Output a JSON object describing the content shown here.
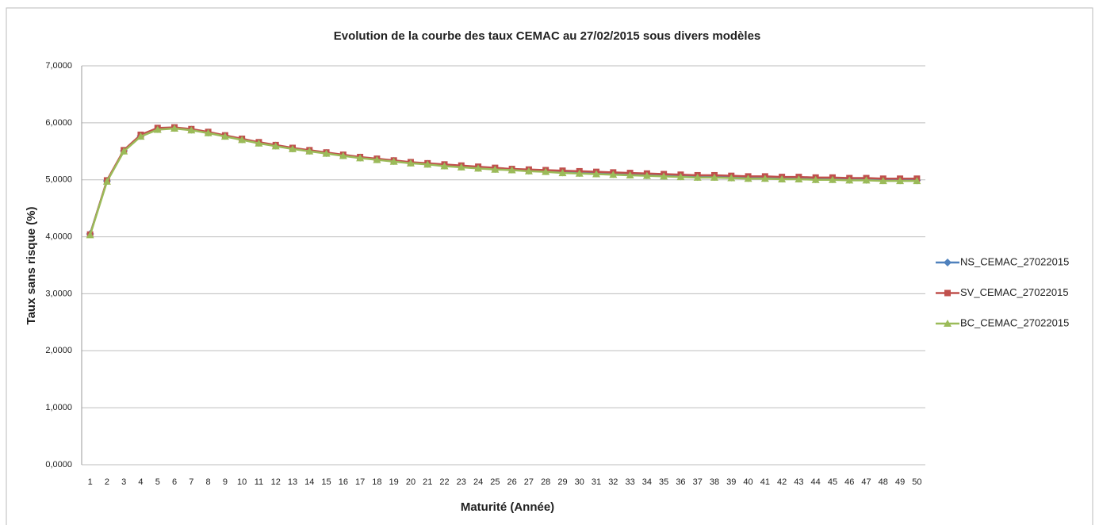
{
  "chart_data": {
    "type": "line",
    "title": "Evolution de la courbe des taux CEMAC au 27/02/2015 sous divers modèles",
    "x_label": "Maturité (Année)",
    "y_label": "Taux sans risque (%)",
    "categories": [
      "1",
      "2",
      "3",
      "4",
      "5",
      "6",
      "7",
      "8",
      "9",
      "10",
      "11",
      "12",
      "13",
      "14",
      "15",
      "16",
      "17",
      "18",
      "19",
      "20",
      "21",
      "22",
      "23",
      "24",
      "25",
      "26",
      "27",
      "28",
      "29",
      "30",
      "31",
      "32",
      "33",
      "34",
      "35",
      "36",
      "37",
      "38",
      "39",
      "40",
      "41",
      "42",
      "43",
      "44",
      "45",
      "46",
      "47",
      "48",
      "49",
      "50"
    ],
    "ylim": [
      0,
      7
    ],
    "yticks": [
      {
        "value": 0,
        "label": "0,0000"
      },
      {
        "value": 1,
        "label": "1,0000"
      },
      {
        "value": 2,
        "label": "2,0000"
      },
      {
        "value": 3,
        "label": "3,0000"
      },
      {
        "value": 4,
        "label": "4,0000"
      },
      {
        "value": 5,
        "label": "5,0000"
      },
      {
        "value": 6,
        "label": "6,0000"
      },
      {
        "value": 7,
        "label": "7,0000"
      }
    ],
    "grid": true,
    "legend": "right",
    "series": [
      {
        "name": "NS_CEMAC_27022015",
        "color": "#4f81bd",
        "marker": "diamond",
        "values": [
          4.05,
          4.98,
          5.51,
          5.77,
          5.89,
          5.91,
          5.88,
          5.83,
          5.77,
          5.71,
          5.65,
          5.6,
          5.55,
          5.51,
          5.47,
          5.43,
          5.39,
          5.36,
          5.33,
          5.3,
          5.28,
          5.25,
          5.23,
          5.21,
          5.19,
          5.18,
          5.16,
          5.15,
          5.13,
          5.12,
          5.11,
          5.1,
          5.09,
          5.08,
          5.07,
          5.06,
          5.05,
          5.05,
          5.04,
          5.03,
          5.03,
          5.02,
          5.02,
          5.01,
          5.01,
          5.0,
          5.0,
          4.99,
          4.99,
          4.99
        ]
      },
      {
        "name": "SV_CEMAC_27022015",
        "color": "#c0504d",
        "marker": "square",
        "values": [
          4.04,
          4.99,
          5.52,
          5.79,
          5.91,
          5.92,
          5.89,
          5.84,
          5.78,
          5.72,
          5.66,
          5.61,
          5.56,
          5.52,
          5.48,
          5.44,
          5.4,
          5.37,
          5.34,
          5.31,
          5.29,
          5.27,
          5.25,
          5.23,
          5.21,
          5.19,
          5.18,
          5.17,
          5.16,
          5.15,
          5.14,
          5.13,
          5.12,
          5.11,
          5.1,
          5.09,
          5.08,
          5.08,
          5.07,
          5.06,
          5.06,
          5.05,
          5.05,
          5.04,
          5.04,
          5.03,
          5.03,
          5.02,
          5.02,
          5.02
        ]
      },
      {
        "name": "BC_CEMAC_27022015",
        "color": "#9bbb59",
        "marker": "triangle",
        "values": [
          4.03,
          4.97,
          5.5,
          5.76,
          5.88,
          5.9,
          5.87,
          5.82,
          5.76,
          5.7,
          5.64,
          5.59,
          5.54,
          5.5,
          5.46,
          5.42,
          5.38,
          5.35,
          5.32,
          5.29,
          5.27,
          5.24,
          5.22,
          5.2,
          5.18,
          5.17,
          5.15,
          5.14,
          5.12,
          5.11,
          5.1,
          5.09,
          5.08,
          5.07,
          5.06,
          5.05,
          5.04,
          5.04,
          5.03,
          5.02,
          5.02,
          5.01,
          5.01,
          5.0,
          5.0,
          4.99,
          4.99,
          4.98,
          4.98,
          4.98
        ]
      }
    ]
  }
}
